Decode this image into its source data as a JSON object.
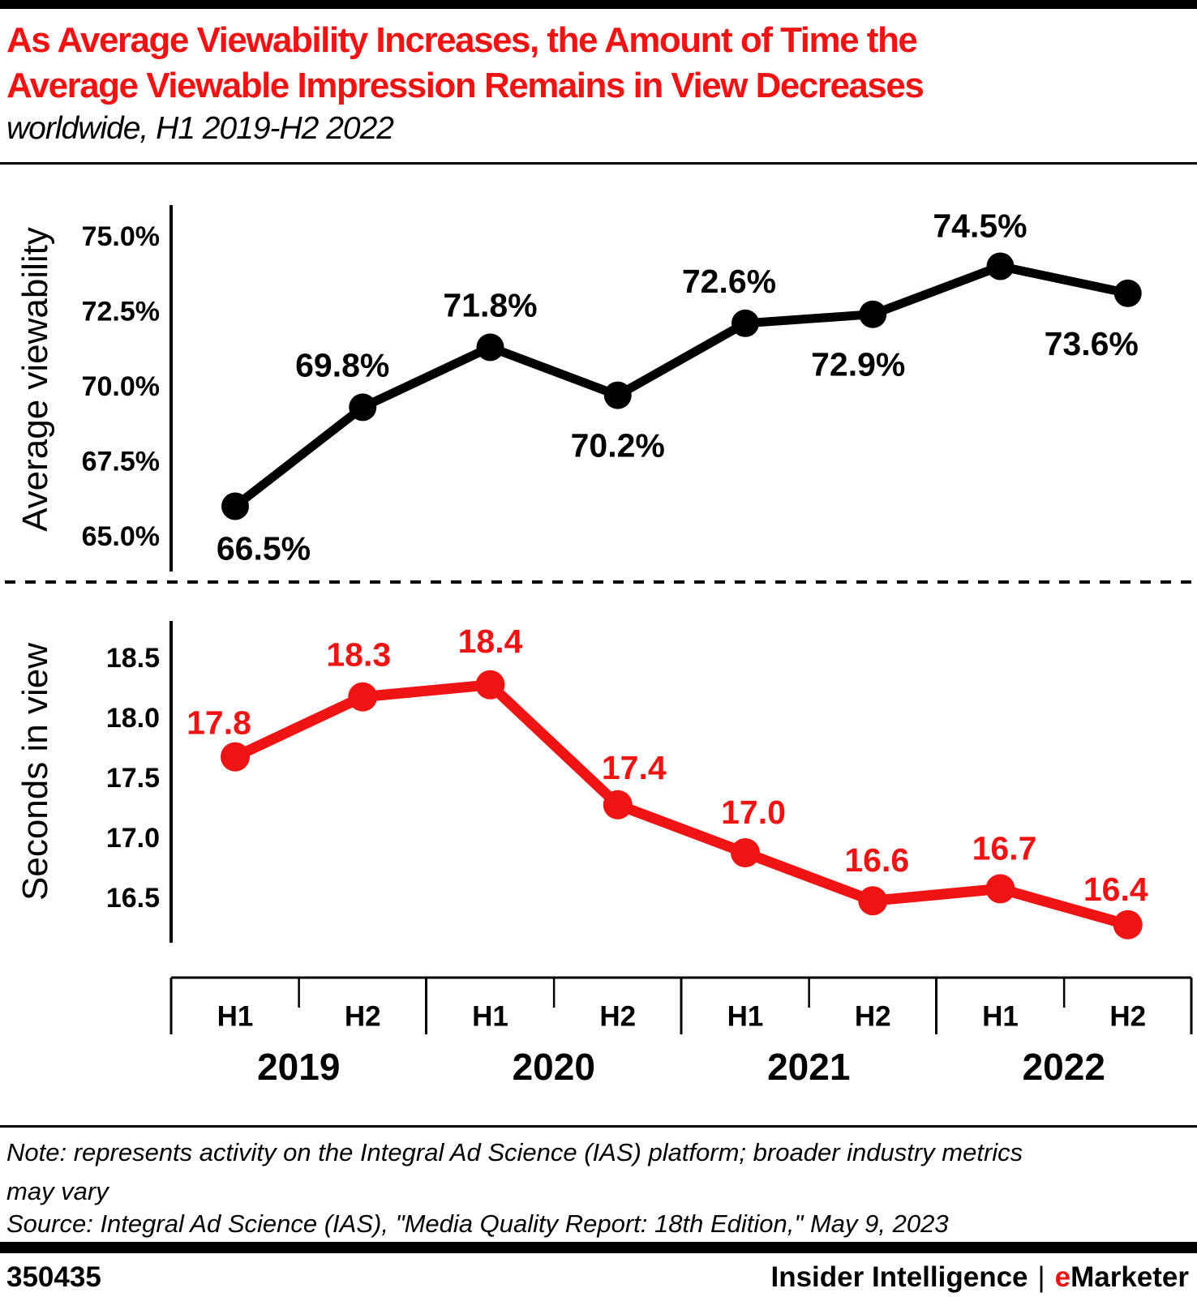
{
  "header": {
    "title_lines": [
      "As Average Viewability Increases, the Amount of Time the",
      "Average Viewable Impression Remains in View Decreases"
    ],
    "subtitle": "worldwide, H1 2019-H2 2022"
  },
  "colors": {
    "accent_red": "#ee1414",
    "series_black": "#000000",
    "text_black": "#000000"
  },
  "chart_data": [
    {
      "type": "line",
      "name": "average-viewability",
      "ylabel": "Average viewability",
      "color": "#000000",
      "categories": [
        "H1 2019",
        "H2 2019",
        "H1 2020",
        "H2 2020",
        "H1 2021",
        "H2 2021",
        "H1 2022",
        "H2 2022"
      ],
      "values": [
        66.5,
        69.8,
        71.8,
        70.2,
        72.6,
        72.9,
        74.5,
        73.6
      ],
      "labels": [
        "66.5%",
        "69.8%",
        "71.8%",
        "70.2%",
        "72.6%",
        "72.9%",
        "74.5%",
        "73.6%"
      ],
      "y_ticks": [
        "75.0%",
        "72.5%",
        "70.0%",
        "67.5%",
        "65.0%"
      ],
      "y_tick_values": [
        75.0,
        72.5,
        70.0,
        67.5,
        65.0
      ],
      "ylim": [
        64.6,
        75.6
      ],
      "grid": false,
      "legend": "none"
    },
    {
      "type": "line",
      "name": "seconds-in-view",
      "ylabel": "Seconds in view",
      "color": "#ee1414",
      "categories": [
        "H1 2019",
        "H2 2019",
        "H1 2020",
        "H2 2020",
        "H1 2021",
        "H2 2021",
        "H1 2022",
        "H2 2022"
      ],
      "values": [
        17.8,
        18.3,
        18.4,
        17.4,
        17.0,
        16.6,
        16.7,
        16.4
      ],
      "labels": [
        "17.8",
        "18.3",
        "18.4",
        "17.4",
        "17.0",
        "16.6",
        "16.7",
        "16.4"
      ],
      "y_ticks": [
        "18.5",
        "18.0",
        "17.5",
        "17.0",
        "16.5"
      ],
      "y_tick_values": [
        18.5,
        18.0,
        17.5,
        17.0,
        16.5
      ],
      "ylim": [
        16.1,
        18.8
      ],
      "grid": false,
      "legend": "none"
    }
  ],
  "x_axis": {
    "halves": [
      "H1",
      "H2",
      "H1",
      "H2",
      "H1",
      "H2",
      "H1",
      "H2"
    ],
    "years": [
      "2019",
      "2020",
      "2021",
      "2022"
    ]
  },
  "footer": {
    "note": "Note: represents activity on the Integral Ad Science (IAS) platform; broader industry metrics may vary",
    "source": "Source: Integral Ad Science (IAS), \"Media Quality Report: 18th Edition,\" May 9, 2023",
    "chart_id": "350435",
    "brand_left": "Insider Intelligence",
    "brand_divider": "|",
    "brand_e": "e",
    "brand_rest": "Marketer"
  }
}
